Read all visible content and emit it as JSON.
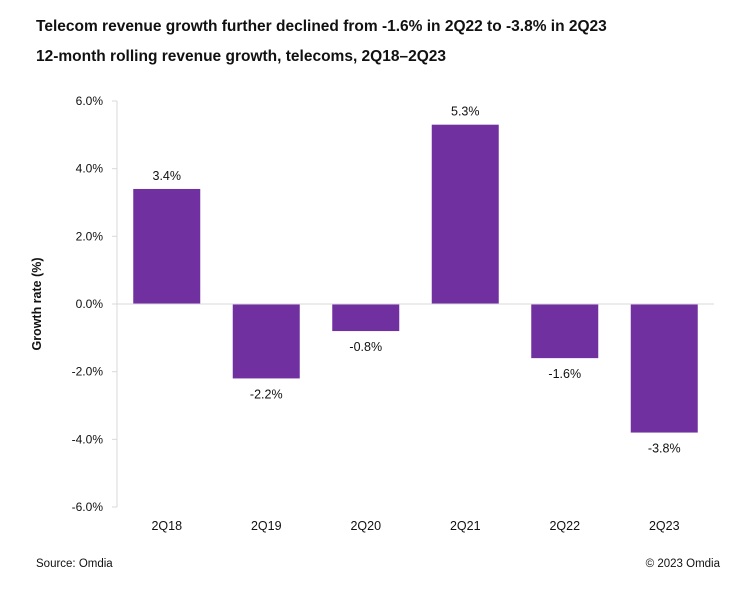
{
  "header": {
    "title": "Telecom revenue growth further declined from -1.6% in 2Q22 to -3.8% in 2Q23",
    "subtitle": "12-month rolling revenue growth, telecoms, 2Q18–2Q23"
  },
  "footer": {
    "source": "Source: Omdia",
    "copyright": "© 2023 Omdia"
  },
  "chart_data": {
    "type": "bar",
    "categories": [
      "2Q18",
      "2Q19",
      "2Q20",
      "2Q21",
      "2Q22",
      "2Q23"
    ],
    "values": [
      3.4,
      -2.2,
      -0.8,
      5.3,
      -1.6,
      -3.8
    ],
    "data_labels": [
      "3.4%",
      "-2.2%",
      "-0.8%",
      "5.3%",
      "-1.6%",
      "-3.8%"
    ],
    "ylabel": "Growth rate (%)",
    "xlabel": "",
    "ylim": [
      -6,
      6
    ],
    "yticks": [
      6,
      4,
      2,
      0,
      -2,
      -4,
      -6
    ],
    "ytick_labels": [
      "6.0%",
      "4.0%",
      "2.0%",
      "0.0%",
      "-2.0%",
      "-4.0%",
      "-6.0%"
    ],
    "grid": false,
    "bar_color": "#7030a0",
    "axis_color": "#d9d9d9"
  }
}
